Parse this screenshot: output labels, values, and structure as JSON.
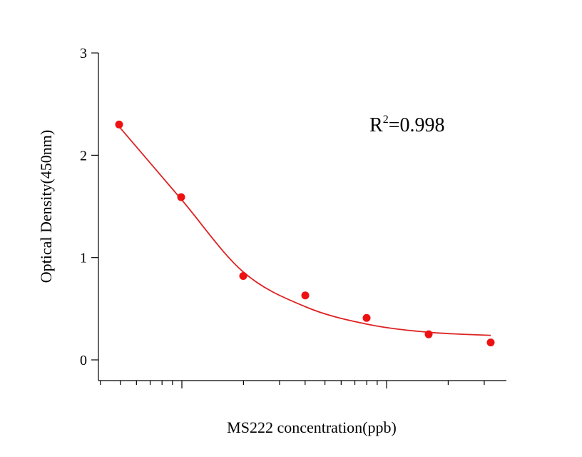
{
  "chart_data": {
    "type": "scatter",
    "title": "",
    "xlabel": "MS222 concentration(ppb)",
    "ylabel": "Optical Density(450nm)",
    "x_scale": "log",
    "ylim": [
      -0.2,
      3
    ],
    "y_ticks": [
      "0",
      "1",
      "2",
      "3"
    ],
    "grid": false,
    "colors": {
      "marker": "#ee1111",
      "curve": "#dd2222",
      "axis": "#000000"
    },
    "annotation": {
      "base": "R",
      "sup": "2",
      "rest": "=0.998"
    },
    "series": [
      {
        "kind": "points",
        "values": [
          2.3,
          1.59,
          0.82,
          0.63,
          0.41,
          0.25,
          0.17
        ]
      },
      {
        "kind": "fit-curve",
        "values": [
          2.28,
          1.57,
          0.86,
          0.52,
          0.35,
          0.27,
          0.24
        ]
      }
    ]
  }
}
